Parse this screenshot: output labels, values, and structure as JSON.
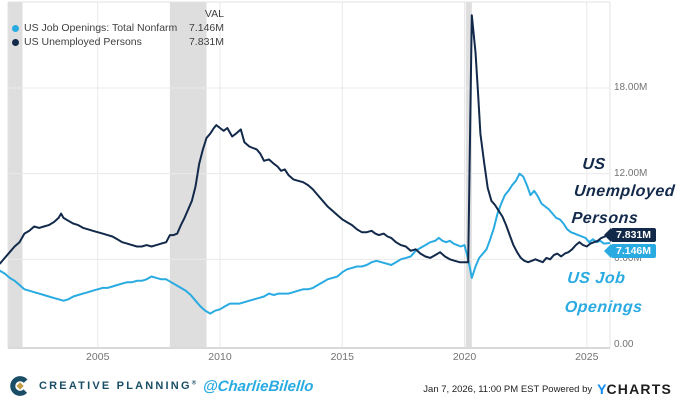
{
  "colors": {
    "cyan": "#29ABE2",
    "navy": "#12294A",
    "band": "#DEDEDE",
    "grid": "#E9E9E9",
    "border": "#E3E3E3",
    "axis": "#D9D9D9",
    "brand_navy": "#1A4E66",
    "brand_gold": "#C29C44",
    "ycharts_blue": "#0D8BF2"
  },
  "legend": {
    "val_header": "VAL",
    "items": [
      {
        "name": "US Job Openings: Total Nonfarm",
        "value": "7.146M"
      },
      {
        "name": "US Unemployed Persons",
        "value": "7.831M"
      }
    ]
  },
  "annotations": {
    "unemployed": {
      "line1": "US",
      "line2": "Unemployed",
      "line3": "Persons"
    },
    "openings": {
      "line1": "US Job",
      "line2": "Openings"
    }
  },
  "badges": [
    {
      "label": "7.831M",
      "series": "US Unemployed Persons"
    },
    {
      "label": "7.146M",
      "series": "US Job Openings: Total Nonfarm"
    }
  ],
  "footer": {
    "brand": "CREATIVE PLANNING",
    "brand_mark": "®",
    "handle": "@CharlieBilello",
    "timestamp": "Jan 7, 2026, 11:00 PM EST",
    "powered_by": "Powered by",
    "ycharts_y": "Y",
    "ycharts_rest": "CHARTS"
  },
  "chart_data": {
    "type": "line",
    "title": "",
    "xlabel": "",
    "ylabel": "",
    "xlim": [
      2001.33,
      2025.95
    ],
    "ylim": [
      0,
      24
    ],
    "grid": true,
    "legend_position": "top-left",
    "x_ticks": [
      2005,
      2010,
      2015,
      2020,
      2025
    ],
    "y_ticks": [
      {
        "label": "0.00",
        "value": 0
      },
      {
        "label": "6.00M",
        "value": 6
      },
      {
        "label": "12.00M",
        "value": 12
      },
      {
        "label": "18.00M",
        "value": 18
      }
    ],
    "recession_bands": [
      [
        2001.33,
        2001.92
      ],
      [
        2007.95,
        2009.45
      ],
      [
        2020.05,
        2020.3
      ]
    ],
    "series": [
      {
        "name": "US Job Openings: Total Nonfarm",
        "color": "#29ABE2",
        "end_label": "7.146M",
        "points": [
          [
            2001.0,
            5.2
          ],
          [
            2001.2,
            5.0
          ],
          [
            2001.4,
            4.7
          ],
          [
            2001.6,
            4.5
          ],
          [
            2001.8,
            4.2
          ],
          [
            2002.0,
            3.9
          ],
          [
            2002.2,
            3.8
          ],
          [
            2002.4,
            3.7
          ],
          [
            2002.6,
            3.6
          ],
          [
            2002.8,
            3.5
          ],
          [
            2003.0,
            3.4
          ],
          [
            2003.2,
            3.3
          ],
          [
            2003.4,
            3.2
          ],
          [
            2003.6,
            3.1
          ],
          [
            2003.8,
            3.2
          ],
          [
            2004.0,
            3.4
          ],
          [
            2004.2,
            3.5
          ],
          [
            2004.4,
            3.6
          ],
          [
            2004.6,
            3.7
          ],
          [
            2004.8,
            3.8
          ],
          [
            2005.0,
            3.9
          ],
          [
            2005.2,
            4.0
          ],
          [
            2005.4,
            4.0
          ],
          [
            2005.6,
            4.1
          ],
          [
            2005.8,
            4.2
          ],
          [
            2006.0,
            4.3
          ],
          [
            2006.2,
            4.4
          ],
          [
            2006.4,
            4.4
          ],
          [
            2006.6,
            4.5
          ],
          [
            2006.8,
            4.5
          ],
          [
            2007.0,
            4.6
          ],
          [
            2007.2,
            4.8
          ],
          [
            2007.4,
            4.7
          ],
          [
            2007.6,
            4.6
          ],
          [
            2007.8,
            4.6
          ],
          [
            2008.0,
            4.4
          ],
          [
            2008.2,
            4.2
          ],
          [
            2008.4,
            4.0
          ],
          [
            2008.6,
            3.8
          ],
          [
            2008.8,
            3.5
          ],
          [
            2009.0,
            3.1
          ],
          [
            2009.2,
            2.7
          ],
          [
            2009.4,
            2.4
          ],
          [
            2009.6,
            2.2
          ],
          [
            2009.8,
            2.4
          ],
          [
            2010.0,
            2.5
          ],
          [
            2010.2,
            2.7
          ],
          [
            2010.4,
            2.9
          ],
          [
            2010.6,
            2.9
          ],
          [
            2010.8,
            2.9
          ],
          [
            2011.0,
            3.0
          ],
          [
            2011.2,
            3.1
          ],
          [
            2011.4,
            3.2
          ],
          [
            2011.6,
            3.3
          ],
          [
            2011.8,
            3.4
          ],
          [
            2012.0,
            3.6
          ],
          [
            2012.2,
            3.5
          ],
          [
            2012.4,
            3.6
          ],
          [
            2012.6,
            3.6
          ],
          [
            2012.8,
            3.6
          ],
          [
            2013.0,
            3.7
          ],
          [
            2013.2,
            3.8
          ],
          [
            2013.4,
            3.9
          ],
          [
            2013.6,
            3.9
          ],
          [
            2013.8,
            4.0
          ],
          [
            2014.0,
            4.2
          ],
          [
            2014.2,
            4.4
          ],
          [
            2014.4,
            4.6
          ],
          [
            2014.6,
            4.7
          ],
          [
            2014.8,
            4.8
          ],
          [
            2015.0,
            5.1
          ],
          [
            2015.2,
            5.3
          ],
          [
            2015.4,
            5.4
          ],
          [
            2015.6,
            5.5
          ],
          [
            2015.8,
            5.5
          ],
          [
            2016.0,
            5.6
          ],
          [
            2016.2,
            5.8
          ],
          [
            2016.4,
            5.9
          ],
          [
            2016.6,
            5.8
          ],
          [
            2016.8,
            5.7
          ],
          [
            2017.0,
            5.6
          ],
          [
            2017.2,
            5.8
          ],
          [
            2017.4,
            6.0
          ],
          [
            2017.6,
            6.1
          ],
          [
            2017.8,
            6.2
          ],
          [
            2018.0,
            6.6
          ],
          [
            2018.2,
            6.8
          ],
          [
            2018.4,
            7.0
          ],
          [
            2018.6,
            7.2
          ],
          [
            2018.8,
            7.3
          ],
          [
            2018.95,
            7.5
          ],
          [
            2019.1,
            7.3
          ],
          [
            2019.25,
            7.2
          ],
          [
            2019.4,
            7.3
          ],
          [
            2019.55,
            7.1
          ],
          [
            2019.7,
            7.0
          ],
          [
            2019.85,
            6.9
          ],
          [
            2020.0,
            7.0
          ],
          [
            2020.15,
            6.0
          ],
          [
            2020.3,
            4.7
          ],
          [
            2020.45,
            5.5
          ],
          [
            2020.6,
            6.1
          ],
          [
            2020.75,
            6.4
          ],
          [
            2020.9,
            6.7
          ],
          [
            2021.05,
            7.4
          ],
          [
            2021.2,
            8.2
          ],
          [
            2021.35,
            9.2
          ],
          [
            2021.5,
            9.9
          ],
          [
            2021.65,
            10.5
          ],
          [
            2021.8,
            10.8
          ],
          [
            2021.95,
            11.2
          ],
          [
            2022.1,
            11.5
          ],
          [
            2022.25,
            12.0
          ],
          [
            2022.4,
            11.8
          ],
          [
            2022.55,
            11.2
          ],
          [
            2022.7,
            10.5
          ],
          [
            2022.85,
            10.8
          ],
          [
            2023.0,
            10.4
          ],
          [
            2023.15,
            9.9
          ],
          [
            2023.3,
            9.7
          ],
          [
            2023.45,
            9.5
          ],
          [
            2023.6,
            9.2
          ],
          [
            2023.75,
            8.9
          ],
          [
            2023.9,
            8.8
          ],
          [
            2024.05,
            8.5
          ],
          [
            2024.2,
            8.1
          ],
          [
            2024.35,
            7.9
          ],
          [
            2024.5,
            7.8
          ],
          [
            2024.65,
            7.7
          ],
          [
            2024.8,
            7.6
          ],
          [
            2024.95,
            7.5
          ],
          [
            2025.1,
            7.2
          ],
          [
            2025.25,
            7.4
          ],
          [
            2025.4,
            7.2
          ],
          [
            2025.55,
            7.3
          ],
          [
            2025.7,
            7.1
          ],
          [
            2025.92,
            7.146
          ]
        ]
      },
      {
        "name": "US Unemployed Persons",
        "color": "#12294A",
        "end_label": "7.831M",
        "points": [
          [
            2001.0,
            5.7
          ],
          [
            2001.2,
            6.1
          ],
          [
            2001.4,
            6.5
          ],
          [
            2001.6,
            6.9
          ],
          [
            2001.8,
            7.2
          ],
          [
            2002.0,
            7.8
          ],
          [
            2002.2,
            8.0
          ],
          [
            2002.4,
            8.3
          ],
          [
            2002.6,
            8.2
          ],
          [
            2002.8,
            8.3
          ],
          [
            2003.0,
            8.4
          ],
          [
            2003.2,
            8.6
          ],
          [
            2003.4,
            8.9
          ],
          [
            2003.5,
            9.2
          ],
          [
            2003.6,
            8.9
          ],
          [
            2003.8,
            8.7
          ],
          [
            2004.0,
            8.5
          ],
          [
            2004.2,
            8.4
          ],
          [
            2004.4,
            8.2
          ],
          [
            2004.6,
            8.1
          ],
          [
            2004.8,
            8.0
          ],
          [
            2005.0,
            7.9
          ],
          [
            2005.2,
            7.8
          ],
          [
            2005.4,
            7.7
          ],
          [
            2005.6,
            7.6
          ],
          [
            2005.8,
            7.4
          ],
          [
            2006.0,
            7.2
          ],
          [
            2006.2,
            7.1
          ],
          [
            2006.4,
            7.0
          ],
          [
            2006.6,
            6.9
          ],
          [
            2006.8,
            6.9
          ],
          [
            2007.0,
            7.0
          ],
          [
            2007.2,
            6.9
          ],
          [
            2007.4,
            7.0
          ],
          [
            2007.6,
            7.1
          ],
          [
            2007.8,
            7.2
          ],
          [
            2007.95,
            7.7
          ],
          [
            2008.1,
            7.7
          ],
          [
            2008.25,
            7.8
          ],
          [
            2008.4,
            8.4
          ],
          [
            2008.55,
            8.9
          ],
          [
            2008.7,
            9.5
          ],
          [
            2008.85,
            10.1
          ],
          [
            2009.0,
            11.1
          ],
          [
            2009.15,
            12.7
          ],
          [
            2009.3,
            13.7
          ],
          [
            2009.45,
            14.5
          ],
          [
            2009.6,
            14.8
          ],
          [
            2009.75,
            15.2
          ],
          [
            2009.85,
            15.4
          ],
          [
            2010.0,
            15.2
          ],
          [
            2010.15,
            15.0
          ],
          [
            2010.3,
            15.2
          ],
          [
            2010.5,
            14.6
          ],
          [
            2010.65,
            14.8
          ],
          [
            2010.85,
            15.1
          ],
          [
            2011.0,
            14.2
          ],
          [
            2011.2,
            13.9
          ],
          [
            2011.35,
            13.8
          ],
          [
            2011.5,
            13.7
          ],
          [
            2011.65,
            13.4
          ],
          [
            2011.8,
            12.9
          ],
          [
            2012.0,
            13.0
          ],
          [
            2012.2,
            12.7
          ],
          [
            2012.35,
            12.5
          ],
          [
            2012.5,
            12.2
          ],
          [
            2012.65,
            12.3
          ],
          [
            2012.8,
            11.9
          ],
          [
            2013.0,
            11.6
          ],
          [
            2013.2,
            11.5
          ],
          [
            2013.4,
            11.4
          ],
          [
            2013.6,
            11.2
          ],
          [
            2013.8,
            10.9
          ],
          [
            2014.0,
            10.5
          ],
          [
            2014.2,
            10.1
          ],
          [
            2014.4,
            9.7
          ],
          [
            2014.6,
            9.4
          ],
          [
            2014.8,
            9.1
          ],
          [
            2015.0,
            8.8
          ],
          [
            2015.2,
            8.6
          ],
          [
            2015.4,
            8.4
          ],
          [
            2015.6,
            8.1
          ],
          [
            2015.8,
            7.9
          ],
          [
            2016.0,
            7.9
          ],
          [
            2016.2,
            8.0
          ],
          [
            2016.35,
            7.8
          ],
          [
            2016.5,
            7.7
          ],
          [
            2016.7,
            7.8
          ],
          [
            2016.85,
            7.6
          ],
          [
            2017.0,
            7.5
          ],
          [
            2017.2,
            7.2
          ],
          [
            2017.4,
            7.0
          ],
          [
            2017.6,
            6.9
          ],
          [
            2017.8,
            6.6
          ],
          [
            2018.0,
            6.7
          ],
          [
            2018.2,
            6.4
          ],
          [
            2018.4,
            6.2
          ],
          [
            2018.6,
            6.1
          ],
          [
            2018.8,
            6.3
          ],
          [
            2019.0,
            6.5
          ],
          [
            2019.2,
            6.2
          ],
          [
            2019.4,
            6.0
          ],
          [
            2019.6,
            5.9
          ],
          [
            2019.8,
            5.8
          ],
          [
            2020.0,
            5.8
          ],
          [
            2020.15,
            5.8
          ],
          [
            2020.3,
            23.1
          ],
          [
            2020.45,
            20.5
          ],
          [
            2020.55,
            17.7
          ],
          [
            2020.65,
            14.8
          ],
          [
            2020.8,
            12.8
          ],
          [
            2020.95,
            11.0
          ],
          [
            2021.1,
            10.1
          ],
          [
            2021.25,
            9.8
          ],
          [
            2021.4,
            9.4
          ],
          [
            2021.55,
            9.0
          ],
          [
            2021.7,
            8.4
          ],
          [
            2021.85,
            7.7
          ],
          [
            2022.0,
            7.0
          ],
          [
            2022.15,
            6.5
          ],
          [
            2022.3,
            6.1
          ],
          [
            2022.45,
            5.9
          ],
          [
            2022.6,
            5.8
          ],
          [
            2022.75,
            5.9
          ],
          [
            2022.9,
            6.0
          ],
          [
            2023.05,
            5.9
          ],
          [
            2023.2,
            5.8
          ],
          [
            2023.35,
            6.1
          ],
          [
            2023.5,
            6.0
          ],
          [
            2023.65,
            6.3
          ],
          [
            2023.8,
            6.4
          ],
          [
            2023.95,
            6.2
          ],
          [
            2024.1,
            6.4
          ],
          [
            2024.25,
            6.5
          ],
          [
            2024.4,
            6.7
          ],
          [
            2024.55,
            7.0
          ],
          [
            2024.7,
            7.2
          ],
          [
            2024.85,
            7.0
          ],
          [
            2025.0,
            6.9
          ],
          [
            2025.15,
            7.1
          ],
          [
            2025.3,
            7.2
          ],
          [
            2025.45,
            7.3
          ],
          [
            2025.6,
            7.5
          ],
          [
            2025.75,
            7.6
          ],
          [
            2025.92,
            7.831
          ]
        ]
      }
    ]
  }
}
